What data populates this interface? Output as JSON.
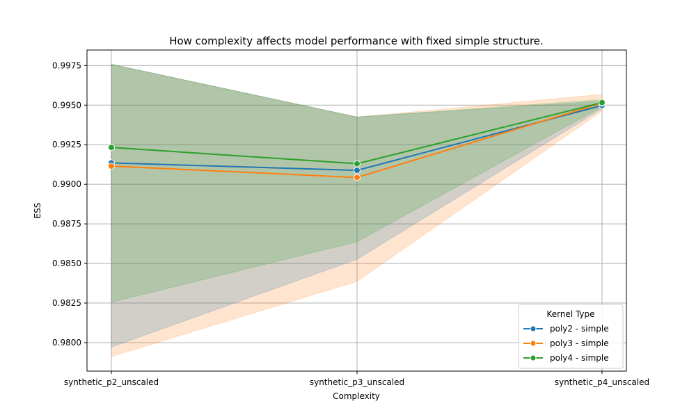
{
  "chart_data": {
    "type": "line",
    "title": "How complexity affects model performance with fixed simple structure.",
    "xlabel": "Complexity",
    "ylabel": "ESS",
    "categories": [
      "synthetic_p2_unscaled",
      "synthetic_p3_unscaled",
      "synthetic_p4_unscaled"
    ],
    "ylim": [
      0.9782,
      0.99848
    ],
    "yticks": [
      "0.9800",
      "0.9825",
      "0.9850",
      "0.9875",
      "0.9900",
      "0.9925",
      "0.9950",
      "0.9975"
    ],
    "grid": true,
    "legend": {
      "title": "Kernel Type",
      "position": "bottom-right"
    },
    "series": [
      {
        "name": "poly2 - simple",
        "color": "#1f77b4",
        "values": [
          0.99135,
          0.99088,
          0.99498
        ],
        "lower": [
          0.97972,
          0.98527,
          0.99478
        ],
        "upper": [
          0.99758,
          0.99425,
          0.99525
        ]
      },
      {
        "name": "poly3 - simple",
        "color": "#ff7f0e",
        "values": [
          0.99115,
          0.99043,
          0.99513
        ],
        "lower": [
          0.97912,
          0.98387,
          0.99463
        ],
        "upper": [
          0.99758,
          0.99425,
          0.99568
        ]
      },
      {
        "name": "poly4 - simple",
        "color": "#2ca02c",
        "values": [
          0.99233,
          0.9913,
          0.99516
        ],
        "lower": [
          0.98255,
          0.98637,
          0.9949
        ],
        "upper": [
          0.99758,
          0.99425,
          0.99535
        ]
      }
    ]
  }
}
